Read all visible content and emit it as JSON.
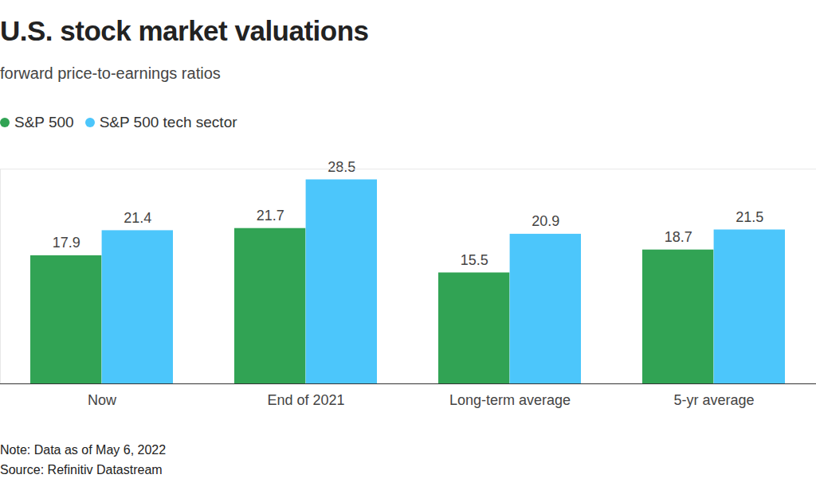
{
  "chart_data": {
    "type": "bar",
    "title": "U.S. stock market valuations",
    "subtitle": "forward price-to-earnings ratios",
    "categories": [
      "Now",
      "End of 2021",
      "Long-term average",
      "5-yr average"
    ],
    "series": [
      {
        "name": "S&P 500",
        "color": "#31a354",
        "values": [
          17.9,
          21.7,
          15.5,
          18.7
        ]
      },
      {
        "name": "S&P 500 tech sector",
        "color": "#4cc6fb",
        "values": [
          21.4,
          28.5,
          20.9,
          21.5
        ]
      }
    ],
    "ylim": [
      0,
      30
    ],
    "data_labels": true,
    "tick_labels": "x",
    "legend": "top-left",
    "note": "Note: Data as of May 6, 2022",
    "source": "Source: Refinitiv Datastream"
  }
}
